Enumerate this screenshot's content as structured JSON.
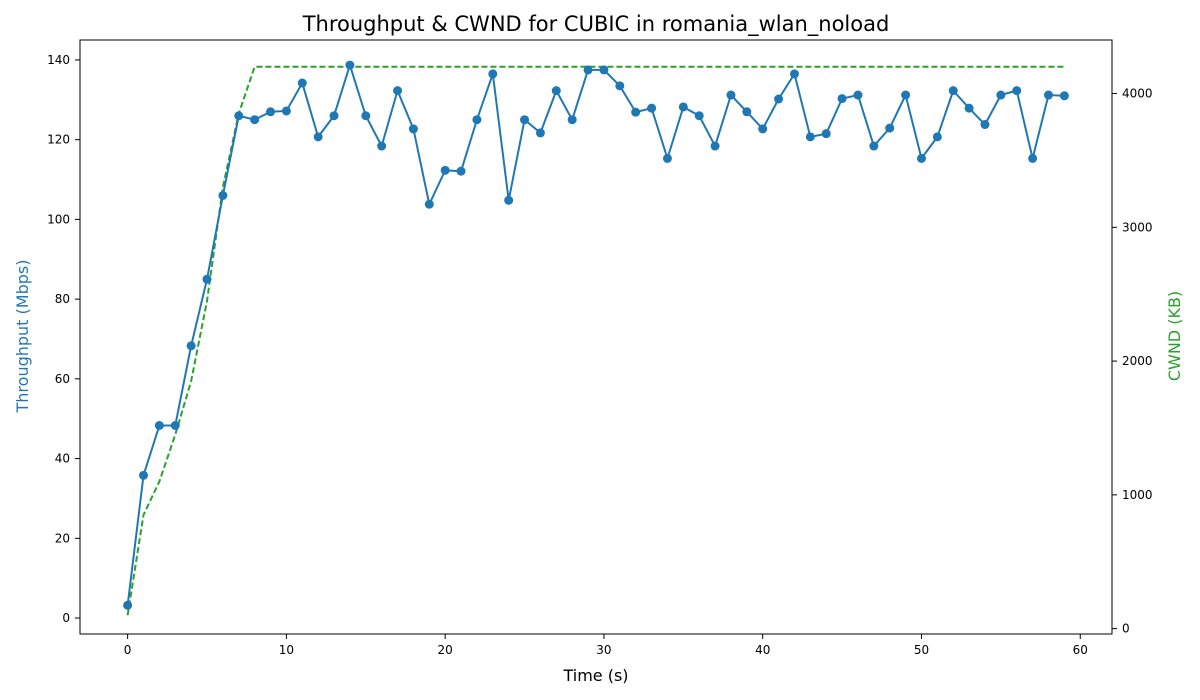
{
  "chart_data": {
    "type": "line",
    "title": "Throughput & CWND for CUBIC in romania_wlan_noload",
    "xlabel": "Time (s)",
    "ylabel_left": "Throughput (Mbps)",
    "ylabel_right": "CWND (KB)",
    "xlim": [
      -3,
      62
    ],
    "ylim_left": [
      -4,
      145
    ],
    "ylim_right": [
      -40,
      4400
    ],
    "x_ticks": [
      0,
      10,
      20,
      30,
      40,
      50,
      60
    ],
    "y_ticks_left": [
      0,
      20,
      40,
      60,
      80,
      100,
      120,
      140
    ],
    "y_ticks_right": [
      0,
      1000,
      2000,
      3000,
      4000
    ],
    "grid": false,
    "colors": {
      "throughput": "#1f77b4",
      "cwnd": "#2ca02c"
    },
    "series": [
      {
        "axis": "left",
        "style": "solid-with-markers",
        "x": [
          0,
          1,
          2,
          3,
          4,
          5,
          6,
          7,
          8,
          9,
          10,
          11,
          12,
          13,
          14,
          15,
          16,
          17,
          18,
          19,
          20,
          21,
          22,
          23,
          24,
          25,
          26,
          27,
          28,
          29,
          30,
          31,
          32,
          33,
          34,
          35,
          36,
          37,
          38,
          39,
          40,
          41,
          42,
          43,
          44,
          45,
          46,
          47,
          48,
          49,
          50,
          51,
          52,
          53,
          54,
          55,
          56,
          57,
          58,
          59
        ],
        "values": [
          3.2,
          35.8,
          48.3,
          48.3,
          68.3,
          85.0,
          106.0,
          126.0,
          125.0,
          127.0,
          127.2,
          134.2,
          120.7,
          126.0,
          138.7,
          126.0,
          118.4,
          132.3,
          122.7,
          103.8,
          112.3,
          112.1,
          125.0,
          136.5,
          104.8,
          125.0,
          121.7,
          132.3,
          125.0,
          137.5,
          137.5,
          133.5,
          126.9,
          127.9,
          115.3,
          128.2,
          126.0,
          118.4,
          131.2,
          127.0,
          122.7,
          130.2,
          136.5,
          120.7,
          121.5,
          130.3,
          131.2,
          118.4,
          122.9,
          131.2,
          115.3,
          120.7,
          132.3,
          127.9,
          123.8,
          131.2,
          132.3,
          115.3,
          131.2,
          131.0
        ]
      },
      {
        "axis": "right",
        "style": "dashed",
        "x": [
          0,
          1,
          2,
          3,
          4,
          5,
          6,
          7,
          8,
          9,
          10,
          20,
          30,
          40,
          50,
          59
        ],
        "values": [
          100,
          850,
          1100,
          1450,
          1850,
          2450,
          3300,
          3850,
          4200,
          4200,
          4200,
          4200,
          4200,
          4200,
          4200,
          4200
        ]
      }
    ]
  }
}
